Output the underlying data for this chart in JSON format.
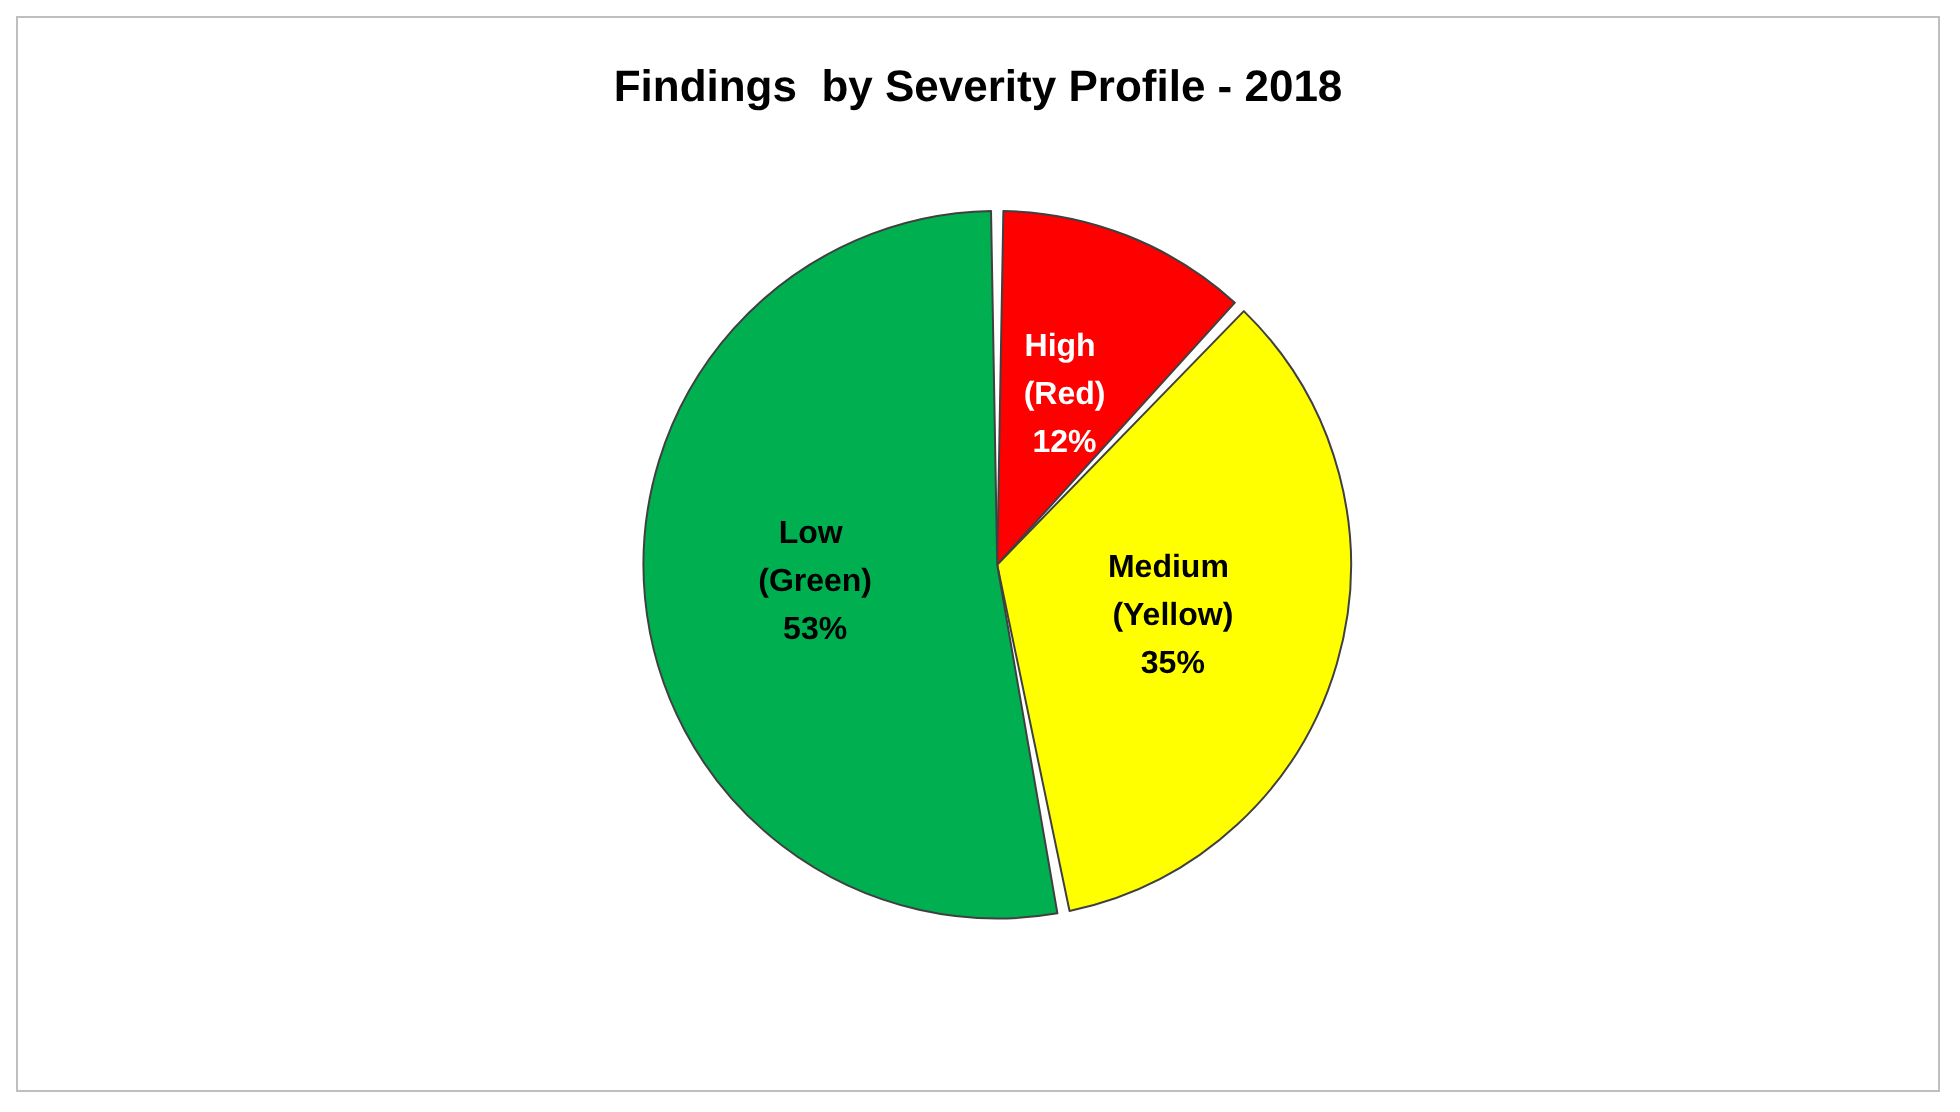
{
  "chart_data": {
    "type": "pie",
    "title": "Findings  by Severity Profile - 2018",
    "categories": [
      "High (Red)",
      "Medium (Yellow)",
      "Low (Green)"
    ],
    "values": [
      12,
      35,
      53
    ],
    "colors": [
      "#ff0000",
      "#ffff00",
      "#00b050"
    ],
    "value_labels": [
      "12%",
      "35%",
      "53%"
    ],
    "legend": false
  }
}
